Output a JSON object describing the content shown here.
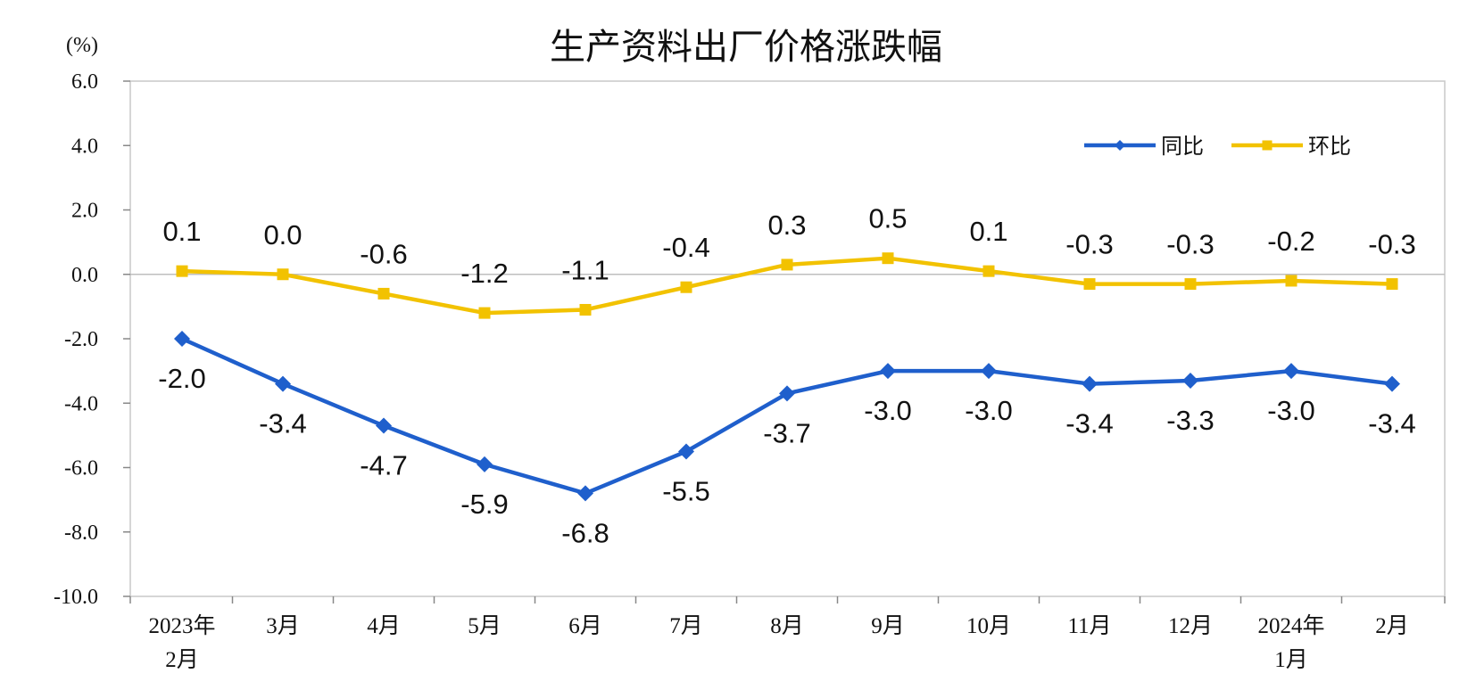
{
  "chart_data": {
    "type": "line",
    "title": "生产资料出厂价格涨跌幅",
    "unit_label": "(%)",
    "categories": [
      [
        "2023年",
        "2月"
      ],
      [
        "3月"
      ],
      [
        "4月"
      ],
      [
        "5月"
      ],
      [
        "6月"
      ],
      [
        "7月"
      ],
      [
        "8月"
      ],
      [
        "9月"
      ],
      [
        "10月"
      ],
      [
        "11月"
      ],
      [
        "12月"
      ],
      [
        "2024年",
        "1月"
      ],
      [
        "2月"
      ]
    ],
    "ylim": [
      -10.0,
      6.0
    ],
    "yticks": [
      "6.0",
      "4.0",
      "2.0",
      "0.0",
      "-2.0",
      "-4.0",
      "-6.0",
      "-8.0",
      "-10.0"
    ],
    "ytick_values": [
      6,
      4,
      2,
      0,
      -2,
      -4,
      -6,
      -8,
      -10
    ],
    "grid": false,
    "legend_position": "top-right",
    "series": [
      {
        "name": "同比",
        "color": "#1f5fcc",
        "marker": "diamond",
        "values": [
          -2.0,
          -3.4,
          -4.7,
          -5.9,
          -6.8,
          -5.5,
          -3.7,
          -3.0,
          -3.0,
          -3.4,
          -3.3,
          -3.0,
          -3.4
        ],
        "labels": [
          "-2.0",
          "-3.4",
          "-4.7",
          "-5.9",
          "-6.8",
          "-5.5",
          "-3.7",
          "-3.0",
          "-3.0",
          "-3.4",
          "-3.3",
          "-3.0",
          "-3.4"
        ]
      },
      {
        "name": "环比",
        "color": "#f2c200",
        "marker": "square",
        "values": [
          0.1,
          0.0,
          -0.6,
          -1.2,
          -1.1,
          -0.4,
          0.3,
          0.5,
          0.1,
          -0.3,
          -0.3,
          -0.2,
          -0.3
        ],
        "labels": [
          "0.1",
          "0.0",
          "-0.6",
          "-1.2",
          "-1.1",
          "-0.4",
          "0.3",
          "0.5",
          "0.1",
          "-0.3",
          "-0.3",
          "-0.2",
          "-0.3"
        ]
      }
    ]
  }
}
